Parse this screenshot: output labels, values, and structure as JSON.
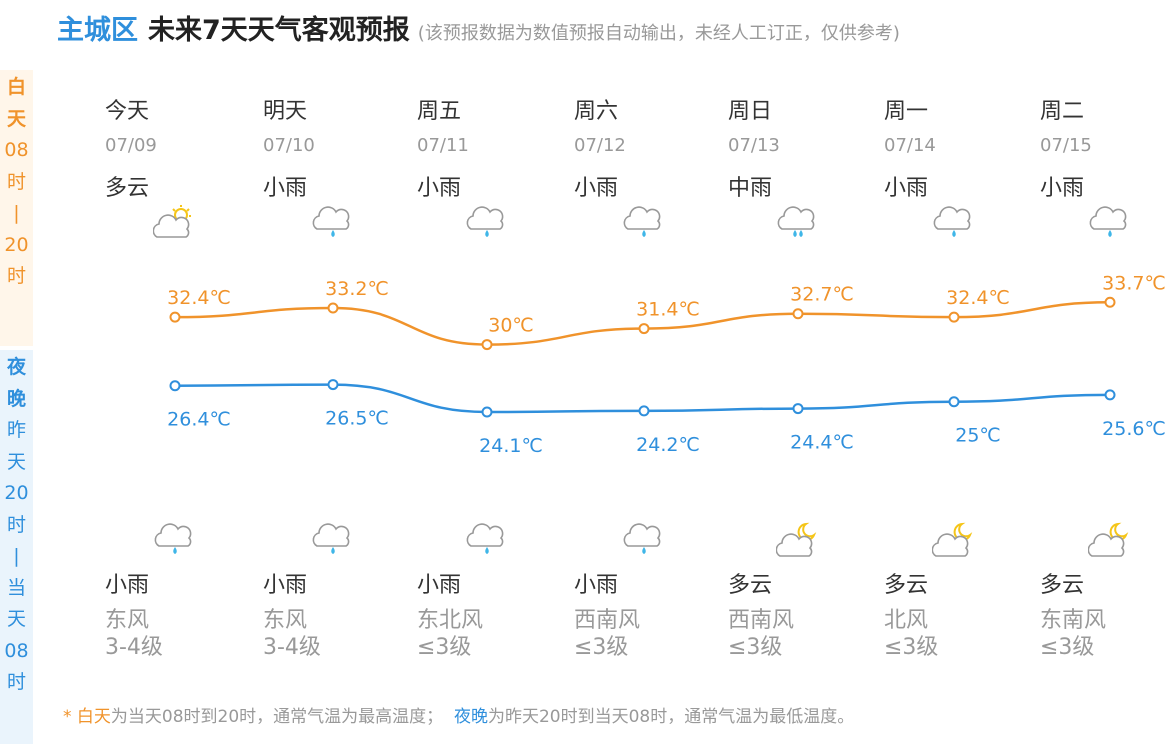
{
  "header": {
    "district": "主城区",
    "title": "未来7天天气客观预报",
    "note": "(该预报数据为数值预报自动输出，未经人工订正，仅供参考)"
  },
  "side_day": [
    "白",
    "天",
    "08",
    "时",
    "|",
    "20",
    "时"
  ],
  "side_night": [
    "夜",
    "晚",
    "昨",
    "天",
    "20",
    "时",
    "|",
    "当",
    "天",
    "08",
    "时"
  ],
  "days": [
    {
      "weekday": "今天",
      "date": "07/09",
      "day_wx": "多云",
      "day_icon": "partly-cloudy-sun-icon",
      "high": "32.4℃",
      "low": "26.4℃",
      "night_wx": "小雨",
      "night_icon": "light-rain-icon",
      "wind_dir": "东风",
      "wind_level": "3-4级"
    },
    {
      "weekday": "明天",
      "date": "07/10",
      "day_wx": "小雨",
      "day_icon": "light-rain-icon",
      "high": "33.2℃",
      "low": "26.5℃",
      "night_wx": "小雨",
      "night_icon": "light-rain-icon",
      "wind_dir": "东风",
      "wind_level": "3-4级"
    },
    {
      "weekday": "周五",
      "date": "07/11",
      "day_wx": "小雨",
      "day_icon": "light-rain-icon",
      "high": "30℃",
      "low": "24.1℃",
      "night_wx": "小雨",
      "night_icon": "light-rain-icon",
      "wind_dir": "东北风",
      "wind_level": "≤3级"
    },
    {
      "weekday": "周六",
      "date": "07/12",
      "day_wx": "小雨",
      "day_icon": "light-rain-icon",
      "high": "31.4℃",
      "low": "24.2℃",
      "night_wx": "小雨",
      "night_icon": "light-rain-icon",
      "wind_dir": "西南风",
      "wind_level": "≤3级"
    },
    {
      "weekday": "周日",
      "date": "07/13",
      "day_wx": "中雨",
      "day_icon": "moderate-rain-icon",
      "high": "32.7℃",
      "low": "24.4℃",
      "night_wx": "多云",
      "night_icon": "partly-cloudy-moon-icon",
      "wind_dir": "西南风",
      "wind_level": "≤3级"
    },
    {
      "weekday": "周一",
      "date": "07/14",
      "day_wx": "小雨",
      "day_icon": "light-rain-icon",
      "high": "32.4℃",
      "low": "25℃",
      "night_wx": "多云",
      "night_icon": "partly-cloudy-moon-icon",
      "wind_dir": "北风",
      "wind_level": "≤3级"
    },
    {
      "weekday": "周二",
      "date": "07/15",
      "day_wx": "小雨",
      "day_icon": "light-rain-icon",
      "high": "33.7℃",
      "low": "25.6℃",
      "night_wx": "多云",
      "night_icon": "partly-cloudy-moon-icon",
      "wind_dir": "东南风",
      "wind_level": "≤3级"
    }
  ],
  "chart_data": {
    "type": "line",
    "categories": [
      "07/09",
      "07/10",
      "07/11",
      "07/12",
      "07/13",
      "07/14",
      "07/15"
    ],
    "series": [
      {
        "values": [
          32.4,
          33.2,
          30,
          31.4,
          32.7,
          32.4,
          33.7
        ],
        "color": "#f0932b"
      },
      {
        "values": [
          26.4,
          26.5,
          24.1,
          24.2,
          24.4,
          25,
          25.6
        ],
        "color": "#2f8fdc"
      }
    ],
    "ylim": [
      22,
      36
    ]
  },
  "footer": {
    "star": "* ",
    "day_term": "白天",
    "day_text": "为当天08时到20时，通常气温为最高温度；",
    "night_term": "夜晚",
    "night_text": "为昨天20时到当天08时，通常气温为最低温度。"
  },
  "colors": {
    "accent_day": "#f0932b",
    "accent_night": "#2f8fdc",
    "sun": "#f5c518",
    "rain": "#3fb6e8"
  }
}
